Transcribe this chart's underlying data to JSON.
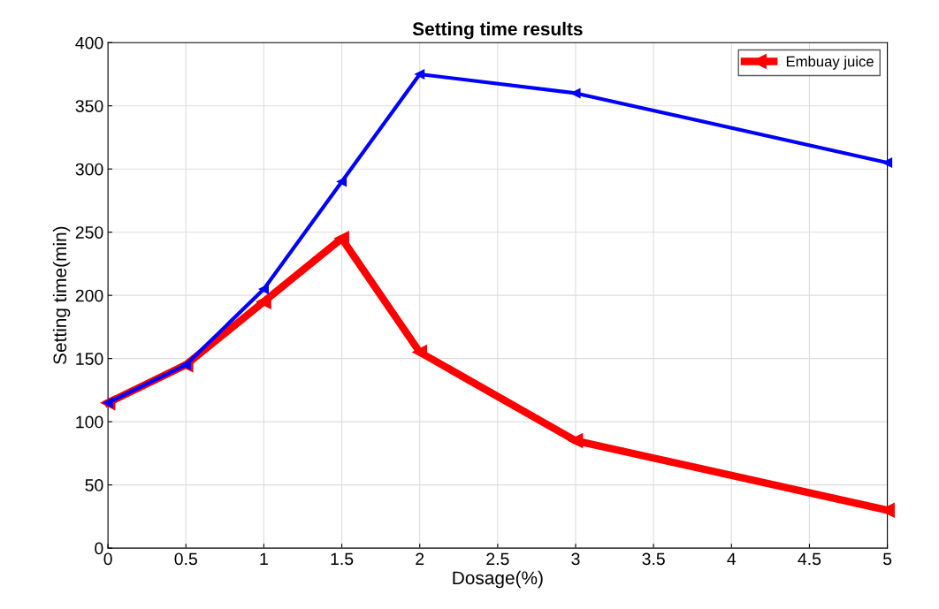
{
  "chart_data": {
    "type": "line",
    "title": "Setting time results",
    "xlabel": "Dosage(%)",
    "ylabel": "Setting time(min)",
    "x": [
      0,
      0.5,
      1,
      1.5,
      2,
      3,
      5
    ],
    "series": [
      {
        "name": "Embuay juice",
        "color": "#ff0000",
        "values": [
          115,
          145,
          195,
          245,
          155,
          85,
          30
        ]
      },
      {
        "color": "#0000ff",
        "values": [
          115,
          145,
          205,
          290,
          375,
          360,
          305
        ]
      }
    ],
    "xlim": [
      0,
      5
    ],
    "xticks": [
      0,
      0.5,
      1,
      1.5,
      2,
      2.5,
      3,
      3.5,
      4,
      4.5,
      5
    ],
    "ylim": [
      0,
      400
    ],
    "yticks": [
      0,
      50,
      100,
      150,
      200,
      250,
      300,
      350,
      400
    ],
    "grid": true,
    "legend": "top right",
    "marker": "triangle",
    "line_style": "solid"
  }
}
